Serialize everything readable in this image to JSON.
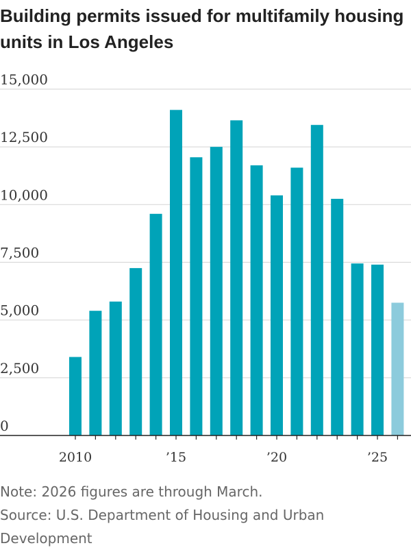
{
  "header": {
    "title": "Building permits issued for multifamily housing units in Los Angeles"
  },
  "footer": {
    "note": "Note: 2026 figures are through March.",
    "source": "Source: U.S. Department of Housing and Urban Development"
  },
  "colors": {
    "bar": "#00a3b8",
    "bar_partial": "#8ccbdc",
    "grid": "#d9d9d9",
    "axis": "#222222"
  },
  "chart_data": {
    "type": "bar",
    "title": "Building permits issued for multifamily housing units in Los Angeles",
    "xlabel": "",
    "ylabel": "",
    "ylim": [
      0,
      15000
    ],
    "grid": true,
    "categories": [
      "2010",
      "2011",
      "2012",
      "2013",
      "2014",
      "2015",
      "2016",
      "2017",
      "2018",
      "2019",
      "2020",
      "2021",
      "2022",
      "2023",
      "2024",
      "2025",
      "2026"
    ],
    "values": [
      3400,
      5400,
      5800,
      7250,
      9600,
      14100,
      12050,
      12500,
      13650,
      11700,
      10400,
      11600,
      13450,
      10250,
      7450,
      7400,
      5750
    ],
    "partial_categories": [
      "2026"
    ],
    "y_ticks": [
      0,
      2500,
      5000,
      7500,
      10000,
      12500,
      15000
    ],
    "y_tick_labels": [
      "0",
      "2,500",
      "5,000",
      "7,500",
      "10,000",
      "12,500",
      "15,000"
    ],
    "x_ticks": [
      "2010",
      "2015",
      "2020",
      "2025"
    ],
    "x_tick_labels": [
      "2010",
      "’15",
      "’20",
      "’25"
    ]
  }
}
